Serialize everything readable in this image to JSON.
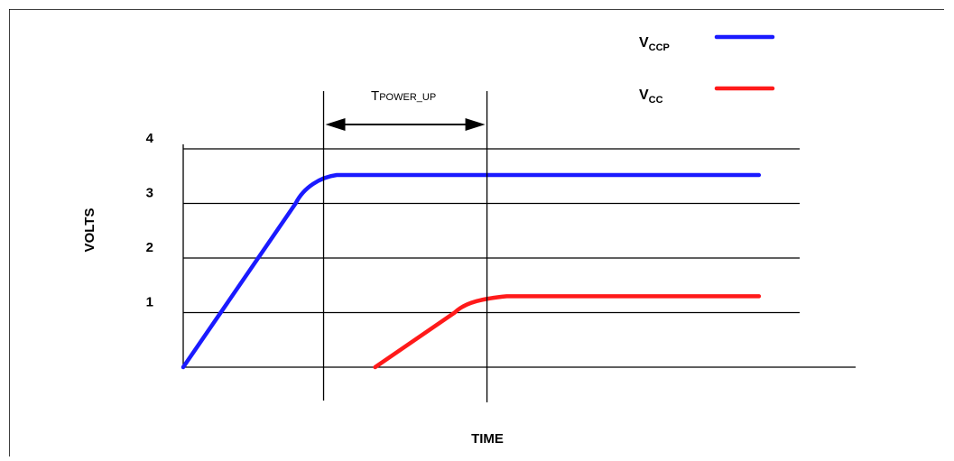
{
  "chart_data": {
    "type": "line",
    "title": "",
    "xlabel": "TIME",
    "ylabel": "VOLTS",
    "x_range": [
      0,
      100
    ],
    "y_range": [
      0,
      4
    ],
    "y_ticks": [
      "1",
      "2",
      "3",
      "4"
    ],
    "grid": "horizontal",
    "legend_position": "top-right",
    "annotation": {
      "label": "T",
      "label_sub": "POWER_UP",
      "from_x": 25.6,
      "to_x": 55.4
    },
    "series": [
      {
        "name": "V",
        "name_sub": "CCP",
        "color": "#1a1aff",
        "points": [
          [
            0,
            0
          ],
          [
            20.5,
            3.0
          ],
          [
            22,
            3.3
          ],
          [
            25,
            3.48
          ],
          [
            28,
            3.52
          ],
          [
            105,
            3.52
          ]
        ]
      },
      {
        "name": "V",
        "name_sub": "CC",
        "color": "#ff1a1a",
        "points": [
          [
            35,
            0
          ],
          [
            49.5,
            1.0
          ],
          [
            51.5,
            1.2
          ],
          [
            55,
            1.26
          ],
          [
            59,
            1.3
          ],
          [
            105,
            1.3
          ]
        ]
      }
    ]
  }
}
